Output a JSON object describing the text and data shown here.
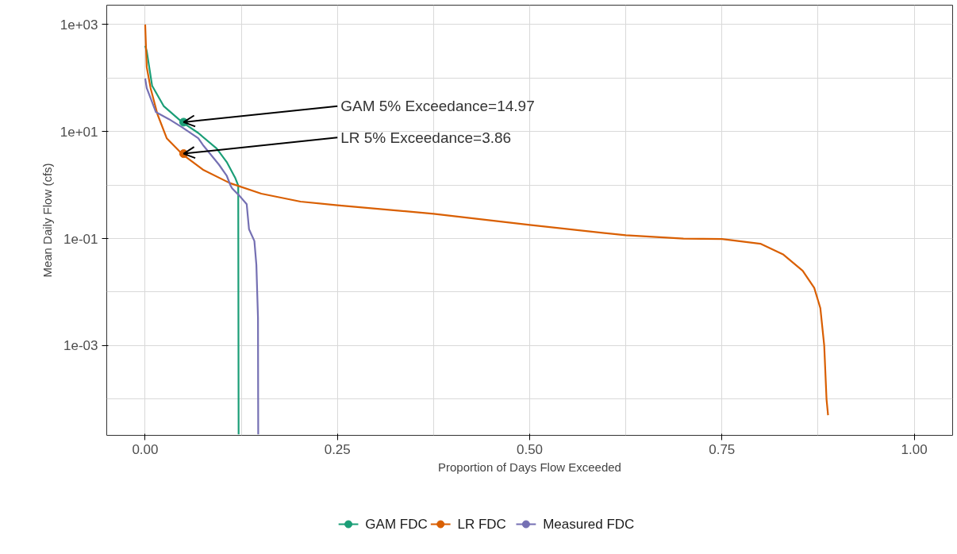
{
  "chart_data": {
    "type": "line",
    "xlabel": "Proportion of Days Flow Exceeded",
    "ylabel": "Mean Daily Flow (cfs)",
    "log": "y",
    "xlim": [
      -0.05,
      1.05
    ],
    "ylim": [
      2.1e-05,
      2300
    ],
    "xticks": [
      {
        "value": 0,
        "label": "0.00"
      },
      {
        "value": 0.125,
        "label": null
      },
      {
        "value": 0.25,
        "label": "0.25"
      },
      {
        "value": 0.375,
        "label": null
      },
      {
        "value": 0.5,
        "label": "0.50"
      },
      {
        "value": 0.625,
        "label": null
      },
      {
        "value": 0.75,
        "label": "0.75"
      },
      {
        "value": 0.875,
        "label": null
      },
      {
        "value": 1,
        "label": "1.00"
      }
    ],
    "yticks": [
      {
        "value": 0.0001,
        "label": null
      },
      {
        "value": 0.001,
        "label": "1e-03"
      },
      {
        "value": 0.01,
        "label": null
      },
      {
        "value": 0.1,
        "label": "1e-01"
      },
      {
        "value": 1,
        "label": null
      },
      {
        "value": 10,
        "label": "1e+01"
      },
      {
        "value": 100,
        "label": null
      },
      {
        "value": 1000,
        "label": "1e+03"
      }
    ],
    "grid": true,
    "legend": "bottom",
    "marker": "none",
    "series": [
      {
        "name": "GAM FDC",
        "color": "#1b9e77",
        "x": [
          0,
          0.002,
          0.009,
          0.024,
          0.048,
          0.069,
          0.093,
          0.106,
          0.117,
          0.121,
          0.1215
        ],
        "values": [
          400,
          320,
          72,
          30,
          15,
          9.4,
          4.8,
          2.7,
          1.37,
          0.98,
          2.2e-05
        ]
      },
      {
        "name": "LR FDC",
        "color": "#d95f02",
        "x": [
          0,
          0.002,
          0.007,
          0.016,
          0.028,
          0.048,
          0.076,
          0.11,
          0.151,
          0.202,
          0.25,
          0.375,
          0.5,
          0.625,
          0.7,
          0.75,
          0.8,
          0.83,
          0.855,
          0.87,
          0.878,
          0.883,
          0.886,
          0.888
        ],
        "values": [
          1000,
          160,
          65,
          21,
          7.5,
          3.8,
          1.9,
          1.09,
          0.69,
          0.49,
          0.42,
          0.29,
          0.18,
          0.115,
          0.1,
          0.098,
          0.08,
          0.05,
          0.025,
          0.012,
          0.005,
          0.001,
          0.0001,
          5e-05
        ]
      },
      {
        "name": "Measured FDC",
        "color": "#7570b3",
        "x": [
          0,
          0.002,
          0.014,
          0.031,
          0.048,
          0.069,
          0.076,
          0.096,
          0.106,
          0.111,
          0.113,
          0.123,
          0.132,
          0.135,
          0.142,
          0.1446,
          0.1467,
          0.147
        ],
        "values": [
          98,
          65,
          23,
          17,
          12,
          7.5,
          5.4,
          2.4,
          1.5,
          0.98,
          0.87,
          0.62,
          0.44,
          0.15,
          0.09,
          0.032,
          0.0033,
          2.2e-05
        ]
      }
    ],
    "annotations": [
      {
        "text": "GAM 5% Exceedance=14.97",
        "x": 0.05,
        "y": 14.97
      },
      {
        "text": "LR 5% Exceedance=3.86",
        "x": 0.05,
        "y": 3.86
      }
    ]
  }
}
